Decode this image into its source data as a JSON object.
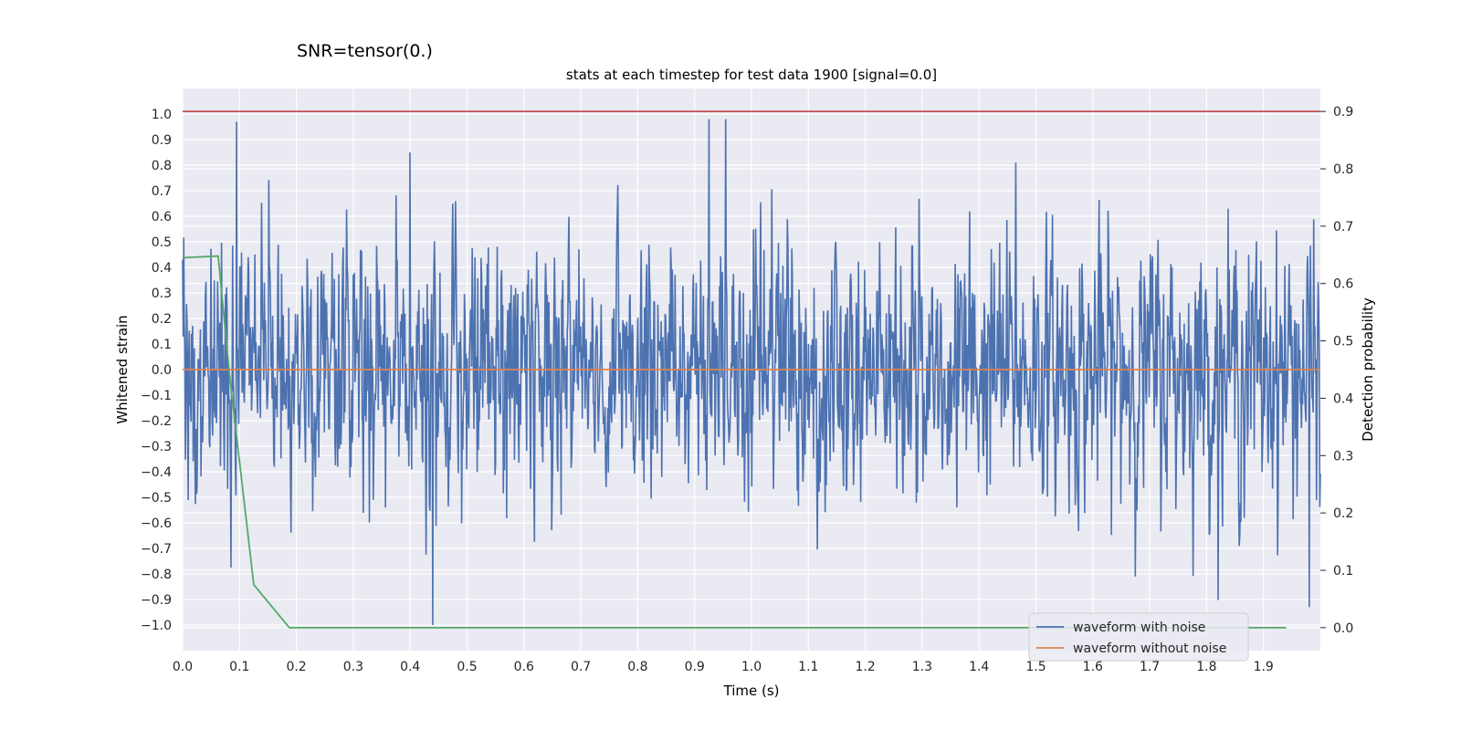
{
  "chart_data": {
    "type": "line",
    "suptitle": "SNR=tensor(0.)",
    "title": "stats at each timestep for test data 1900 [signal=0.0]",
    "xlabel": "Time (s)",
    "ylabel": "Whitened strain",
    "y2label": "Detection probability",
    "xlim": [
      0.0,
      2.0
    ],
    "ylim": [
      -1.1,
      1.1
    ],
    "y2lim": [
      -0.04,
      0.94
    ],
    "xticks": [
      "0.0",
      "0.1",
      "0.2",
      "0.3",
      "0.4",
      "0.5",
      "0.6",
      "0.7",
      "0.8",
      "0.9",
      "1.0",
      "1.1",
      "1.2",
      "1.3",
      "1.4",
      "1.5",
      "1.6",
      "1.7",
      "1.8",
      "1.9"
    ],
    "yticks": [
      "1.0",
      "0.9",
      "0.8",
      "0.7",
      "0.6",
      "0.5",
      "0.4",
      "0.3",
      "0.2",
      "0.1",
      "0.0",
      "−0.1",
      "−0.2",
      "−0.3",
      "−0.4",
      "−0.5",
      "−0.6",
      "−0.7",
      "−0.8",
      "−0.9",
      "−1.0"
    ],
    "y2ticks": [
      "0.9",
      "0.8",
      "0.7",
      "0.6",
      "0.5",
      "0.4",
      "0.3",
      "0.2",
      "0.1",
      "0.0"
    ],
    "grid": true,
    "legend_position": "lower right",
    "series": [
      {
        "name": "waveform with noise",
        "color": "#4c72b0",
        "axis": "left",
        "x_range": [
          0.0,
          2.0
        ],
        "n_points": 2048,
        "amplitude_std": 0.25,
        "values_note_peaks": [
          [
            0.0,
            0.43
          ],
          [
            0.095,
            0.97
          ],
          [
            0.4,
            0.85
          ],
          [
            0.44,
            -1.0
          ],
          [
            0.925,
            0.98
          ],
          [
            0.955,
            0.98
          ],
          [
            1.465,
            0.81
          ],
          [
            1.98,
            -0.93
          ]
        ]
      },
      {
        "name": "waveform without noise",
        "color": "#dd8452",
        "axis": "left",
        "x": [
          0.0,
          2.0
        ],
        "values": [
          0.0,
          0.0
        ]
      },
      {
        "color": "#55a868",
        "axis": "right",
        "x": [
          0.0,
          0.0625,
          0.0825,
          0.125,
          0.1875,
          0.25,
          0.5,
          1.0,
          1.5,
          1.94
        ],
        "values": [
          0.645,
          0.648,
          0.44,
          0.075,
          0.0,
          0.0,
          0.0,
          0.0,
          0.0,
          0.0
        ]
      },
      {
        "color": "#c44e52",
        "axis": "right",
        "x": [
          0.0,
          2.0
        ],
        "values": [
          0.9,
          0.9
        ]
      }
    ],
    "colors": {
      "background": "#eaeaf2",
      "grid": "#ffffff"
    }
  }
}
